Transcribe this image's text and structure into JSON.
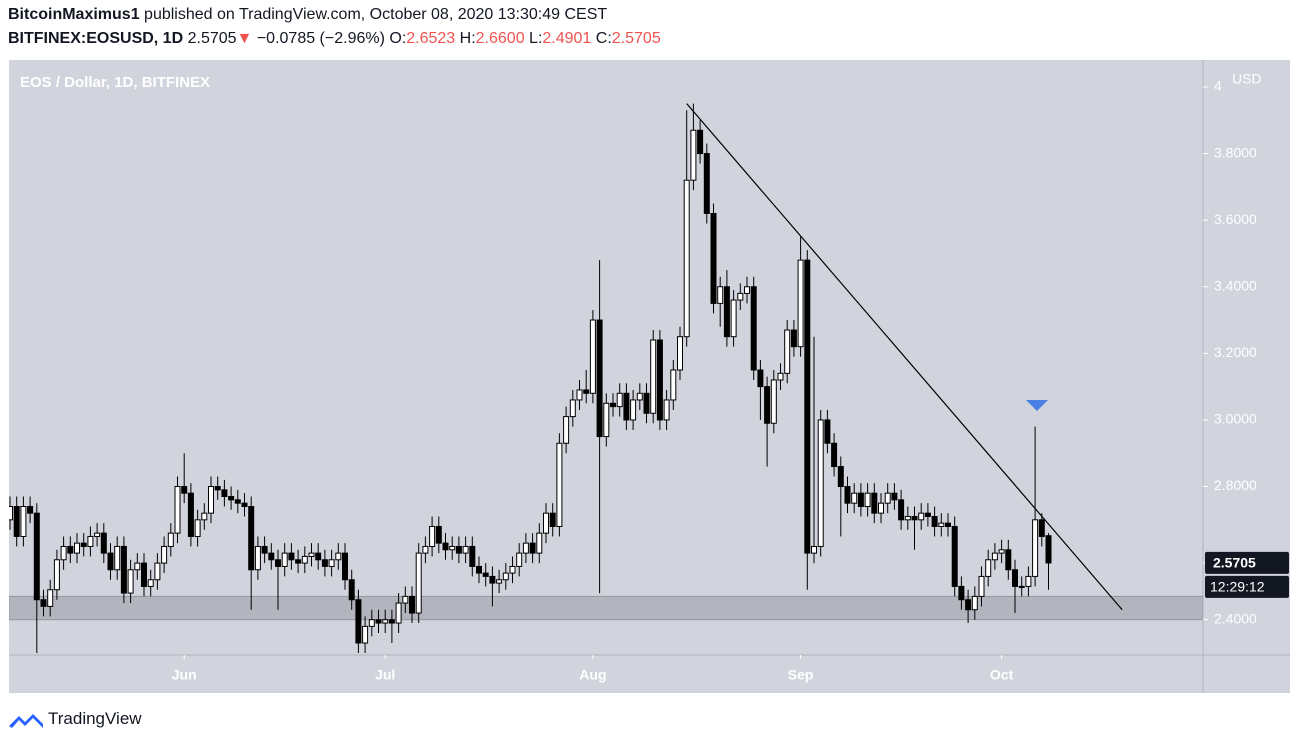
{
  "header": {
    "author": "BitcoinMaximus1",
    "published": "published on TradingView.com, October 08, 2020 13:30:49 CEST",
    "symbol": "BITFINEX:EOSUSD, 1D",
    "last": "2.5705",
    "direction": "▼",
    "change": "−0.0785 (−2.96%)",
    "ohlc": [
      {
        "label": "O:",
        "value": "2.6523"
      },
      {
        "label": "H:",
        "value": "2.6600"
      },
      {
        "label": "L:",
        "value": "2.4901"
      },
      {
        "label": "C:",
        "value": "2.5705"
      }
    ]
  },
  "chart_data": {
    "type": "candlestick",
    "title": "EOS / Dollar, 1D, BITFINEX",
    "y_unit": "USD",
    "countdown": "12:29:12",
    "up_color": "#ffffff",
    "down_color": "#000000",
    "wick_color": "#000000",
    "grid": false,
    "categories": [
      null,
      null,
      null,
      null,
      null,
      null,
      null,
      null,
      null,
      null,
      null,
      null,
      null,
      null,
      null,
      null,
      null,
      null,
      null,
      null,
      null,
      null,
      null,
      null,
      null,
      null,
      "Jun",
      null,
      null,
      null,
      null,
      null,
      null,
      null,
      null,
      null,
      null,
      null,
      null,
      null,
      null,
      null,
      null,
      null,
      null,
      null,
      null,
      null,
      null,
      null,
      null,
      null,
      null,
      null,
      null,
      null,
      "Jul",
      null,
      null,
      null,
      null,
      null,
      null,
      null,
      null,
      null,
      null,
      null,
      null,
      null,
      null,
      null,
      null,
      null,
      null,
      null,
      null,
      null,
      null,
      null,
      null,
      null,
      null,
      null,
      null,
      null,
      null,
      "Aug",
      null,
      null,
      null,
      null,
      null,
      null,
      null,
      null,
      null,
      null,
      null,
      null,
      null,
      null,
      null,
      null,
      null,
      null,
      null,
      null,
      null,
      null,
      null,
      null,
      null,
      null,
      null,
      null,
      null,
      null,
      "Sep",
      null,
      null,
      null,
      null,
      null,
      null,
      null,
      null,
      null,
      null,
      null,
      null,
      null,
      null,
      null,
      null,
      null,
      null,
      null,
      null,
      null,
      null,
      null,
      null,
      null,
      null,
      null,
      null,
      null,
      "Oct",
      null,
      null,
      null,
      null,
      null,
      null,
      null
    ],
    "open": [
      2.7,
      2.74,
      2.65,
      2.74,
      2.72,
      2.46,
      2.44,
      2.49,
      2.58,
      2.62,
      2.6,
      2.63,
      2.62,
      2.65,
      2.66,
      2.6,
      2.55,
      2.62,
      2.48,
      2.55,
      2.57,
      2.5,
      2.52,
      2.57,
      2.62,
      2.66,
      2.8,
      2.78,
      2.65,
      2.7,
      2.72,
      2.8,
      2.79,
      2.77,
      2.76,
      2.75,
      2.74,
      2.55,
      2.62,
      2.6,
      2.58,
      2.56,
      2.6,
      2.58,
      2.57,
      2.59,
      2.6,
      2.58,
      2.56,
      2.58,
      2.6,
      2.52,
      2.46,
      2.33,
      2.38,
      2.4,
      2.39,
      2.4,
      2.39,
      2.45,
      2.47,
      2.42,
      2.6,
      2.62,
      2.68,
      2.63,
      2.61,
      2.62,
      2.6,
      2.62,
      2.56,
      2.54,
      2.53,
      2.51,
      2.52,
      2.54,
      2.56,
      2.6,
      2.63,
      2.6,
      2.66,
      2.72,
      2.68,
      2.93,
      3.01,
      3.06,
      3.09,
      3.08,
      3.3,
      2.95,
      3.05,
      3.04,
      3.08,
      3.0,
      3.06,
      3.08,
      3.02,
      3.24,
      3.0,
      3.06,
      3.15,
      3.25,
      3.72,
      3.87,
      3.8,
      3.62,
      3.35,
      3.4,
      3.25,
      3.36,
      3.38,
      3.4,
      3.15,
      3.1,
      2.99,
      3.12,
      3.14,
      3.27,
      3.22,
      3.48,
      2.6,
      2.62,
      3.0,
      2.93,
      2.86,
      2.8,
      2.75,
      2.78,
      2.74,
      2.78,
      2.72,
      2.75,
      2.78,
      2.76,
      2.7,
      2.71,
      2.7,
      2.72,
      2.71,
      2.68,
      2.69,
      2.68,
      2.5,
      2.46,
      2.43,
      2.47,
      2.53,
      2.58,
      2.6,
      2.61,
      2.55,
      2.5,
      2.5,
      2.53,
      2.7,
      2.6523
    ],
    "high": [
      2.77,
      2.77,
      2.77,
      2.77,
      2.75,
      2.49,
      2.52,
      2.61,
      2.65,
      2.65,
      2.66,
      2.66,
      2.68,
      2.69,
      2.69,
      2.63,
      2.65,
      2.65,
      2.58,
      2.6,
      2.6,
      2.55,
      2.6,
      2.65,
      2.69,
      2.83,
      2.9,
      2.81,
      2.73,
      2.75,
      2.83,
      2.83,
      2.82,
      2.8,
      2.79,
      2.78,
      2.77,
      2.65,
      2.65,
      2.63,
      2.61,
      2.63,
      2.63,
      2.61,
      2.62,
      2.63,
      2.63,
      2.61,
      2.61,
      2.63,
      2.63,
      2.55,
      2.49,
      2.41,
      2.43,
      2.43,
      2.43,
      2.43,
      2.48,
      2.5,
      2.5,
      2.63,
      2.65,
      2.71,
      2.71,
      2.66,
      2.65,
      2.65,
      2.65,
      2.65,
      2.59,
      2.57,
      2.56,
      2.55,
      2.57,
      2.59,
      2.63,
      2.66,
      2.66,
      2.69,
      2.75,
      2.75,
      2.96,
      3.04,
      3.09,
      3.12,
      3.15,
      3.33,
      3.48,
      3.08,
      3.08,
      3.11,
      3.11,
      3.09,
      3.11,
      3.11,
      3.27,
      3.27,
      3.09,
      3.18,
      3.28,
      3.93,
      3.95,
      3.9,
      3.83,
      3.65,
      3.43,
      3.45,
      3.39,
      3.41,
      3.43,
      3.43,
      3.18,
      3.13,
      3.15,
      3.17,
      3.3,
      3.3,
      3.55,
      3.51,
      3.25,
      3.03,
      3.03,
      2.96,
      2.89,
      2.83,
      2.81,
      2.81,
      2.81,
      2.81,
      2.78,
      2.81,
      2.81,
      2.79,
      2.74,
      2.74,
      2.75,
      2.75,
      2.74,
      2.72,
      2.72,
      2.71,
      2.53,
      2.49,
      2.5,
      2.56,
      2.61,
      2.63,
      2.64,
      2.64,
      2.58,
      2.53,
      2.56,
      2.98,
      2.72,
      2.66
    ],
    "low": [
      2.67,
      2.62,
      2.62,
      2.69,
      2.3,
      2.41,
      2.41,
      2.46,
      2.55,
      2.57,
      2.57,
      2.59,
      2.59,
      2.62,
      2.57,
      2.52,
      2.52,
      2.45,
      2.45,
      2.52,
      2.47,
      2.47,
      2.49,
      2.54,
      2.59,
      2.63,
      2.75,
      2.62,
      2.62,
      2.67,
      2.69,
      2.76,
      2.74,
      2.73,
      2.72,
      2.71,
      2.43,
      2.52,
      2.57,
      2.55,
      2.43,
      2.53,
      2.55,
      2.54,
      2.54,
      2.56,
      2.55,
      2.53,
      2.53,
      2.55,
      2.49,
      2.43,
      2.3,
      2.3,
      2.35,
      2.36,
      2.36,
      2.33,
      2.36,
      2.42,
      2.39,
      2.39,
      2.57,
      2.59,
      2.6,
      2.58,
      2.58,
      2.57,
      2.57,
      2.53,
      2.51,
      2.5,
      2.44,
      2.48,
      2.49,
      2.51,
      2.53,
      2.57,
      2.57,
      2.57,
      2.63,
      2.65,
      2.65,
      2.9,
      2.98,
      3.03,
      3.05,
      3.05,
      2.48,
      2.92,
      3.01,
      3.01,
      2.97,
      2.97,
      3.03,
      2.99,
      2.99,
      2.97,
      2.97,
      3.03,
      3.12,
      3.22,
      3.69,
      3.77,
      3.59,
      3.32,
      3.28,
      3.22,
      3.22,
      3.33,
      3.35,
      3.12,
      3.0,
      2.86,
      2.96,
      3.09,
      3.11,
      3.19,
      3.19,
      2.49,
      2.57,
      2.59,
      2.9,
      2.83,
      2.65,
      2.72,
      2.72,
      2.71,
      2.71,
      2.69,
      2.69,
      2.72,
      2.73,
      2.67,
      2.67,
      2.61,
      2.67,
      2.68,
      2.65,
      2.65,
      2.65,
      2.47,
      2.43,
      2.39,
      2.4,
      2.44,
      2.5,
      2.55,
      2.57,
      2.52,
      2.42,
      2.47,
      2.47,
      2.5,
      2.62,
      2.4901
    ],
    "close": [
      2.74,
      2.65,
      2.74,
      2.72,
      2.46,
      2.44,
      2.49,
      2.58,
      2.62,
      2.6,
      2.63,
      2.62,
      2.65,
      2.66,
      2.6,
      2.55,
      2.62,
      2.48,
      2.55,
      2.57,
      2.5,
      2.52,
      2.57,
      2.62,
      2.66,
      2.8,
      2.78,
      2.65,
      2.7,
      2.72,
      2.8,
      2.79,
      2.77,
      2.76,
      2.75,
      2.74,
      2.55,
      2.62,
      2.6,
      2.58,
      2.56,
      2.6,
      2.58,
      2.57,
      2.59,
      2.6,
      2.58,
      2.56,
      2.58,
      2.6,
      2.52,
      2.46,
      2.33,
      2.38,
      2.4,
      2.39,
      2.4,
      2.39,
      2.45,
      2.47,
      2.42,
      2.6,
      2.62,
      2.68,
      2.63,
      2.61,
      2.62,
      2.6,
      2.62,
      2.56,
      2.54,
      2.53,
      2.51,
      2.52,
      2.54,
      2.56,
      2.6,
      2.63,
      2.6,
      2.66,
      2.72,
      2.68,
      2.93,
      3.01,
      3.06,
      3.09,
      3.08,
      3.3,
      2.95,
      3.05,
      3.04,
      3.08,
      3.0,
      3.06,
      3.08,
      3.02,
      3.24,
      3.0,
      3.06,
      3.15,
      3.25,
      3.72,
      3.87,
      3.8,
      3.62,
      3.35,
      3.4,
      3.25,
      3.36,
      3.38,
      3.4,
      3.15,
      3.1,
      2.99,
      3.12,
      3.14,
      3.27,
      3.22,
      3.48,
      2.6,
      2.62,
      3.0,
      2.93,
      2.86,
      2.8,
      2.75,
      2.78,
      2.74,
      2.78,
      2.72,
      2.75,
      2.78,
      2.76,
      2.7,
      2.71,
      2.7,
      2.72,
      2.71,
      2.68,
      2.69,
      2.68,
      2.5,
      2.46,
      2.43,
      2.47,
      2.53,
      2.58,
      2.6,
      2.61,
      2.55,
      2.5,
      2.5,
      2.53,
      2.7,
      2.65,
      2.5705
    ],
    "support_zone": [
      2.4,
      2.47
    ],
    "trend_line": {
      "from": [
        101,
        3.95
      ],
      "to": [
        166,
        2.43
      ]
    },
    "ylim": [
      2.294,
      4.081
    ],
    "yticks": [
      4,
      {
        "value": 3.8,
        "label": "3.8000"
      },
      {
        "value": 3.6,
        "label": "3.6000"
      },
      {
        "value": 3.4,
        "label": "3.4000"
      },
      {
        "value": 3.2,
        "label": "3.2000"
      },
      {
        "value": 3,
        "label": "3.0000"
      },
      {
        "value": 2.8,
        "label": "2.8000"
      },
      {
        "value": 2.4,
        "label": "2.4000"
      }
    ]
  },
  "footer": {
    "brand": "TradingView"
  }
}
